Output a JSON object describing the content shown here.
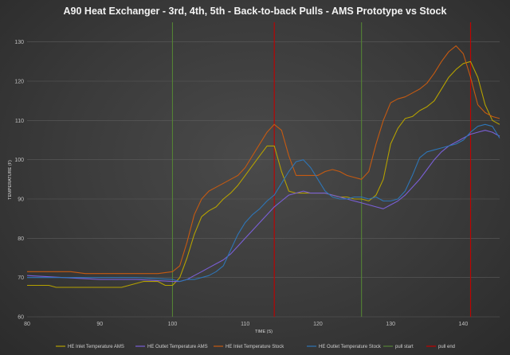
{
  "chart_data": {
    "type": "line",
    "title": "A90 Heat Exchanger - 3rd, 4th, 5th - Back-to-back Pulls - AMS Prototype vs Stock",
    "xlabel": "TIME (S)",
    "ylabel": "TEMPERATURE (F)",
    "xlim": [
      80,
      145
    ],
    "ylim": [
      60,
      135
    ],
    "xticks": [
      80,
      90,
      100,
      110,
      120,
      130,
      140
    ],
    "yticks": [
      60,
      70,
      80,
      90,
      100,
      110,
      120,
      130
    ],
    "grid": true,
    "legend_position": "bottom",
    "series": [
      {
        "name": "HE Inlet Temperature AMS",
        "color": "#b5a100",
        "x": [
          80,
          83,
          84,
          88,
          90,
          92,
          93,
          96,
          98,
          99,
          100,
          101,
          102,
          103,
          104,
          105,
          106,
          107,
          108,
          109,
          110,
          111,
          112,
          113,
          114,
          115,
          116,
          117,
          118,
          119,
          120,
          121,
          122,
          123,
          124,
          125,
          126,
          127,
          128,
          129,
          130,
          131,
          132,
          133,
          134,
          135,
          136,
          137,
          138,
          139,
          140,
          141,
          142,
          143,
          144,
          145
        ],
        "y": [
          68,
          68,
          67.5,
          67.5,
          67.5,
          67.5,
          67.5,
          69,
          69,
          68,
          68,
          70,
          75,
          81,
          85.5,
          87,
          88,
          90,
          91.5,
          93.5,
          96,
          98.5,
          101,
          103.5,
          103.5,
          97,
          92,
          91.5,
          91.5,
          91.5,
          91.5,
          91.5,
          91,
          90.5,
          90.5,
          90,
          90,
          89.5,
          91,
          95,
          104,
          108,
          110.5,
          111,
          112.5,
          113.5,
          115,
          118,
          121,
          123,
          124.5,
          125,
          121,
          114,
          110,
          109
        ]
      },
      {
        "name": "HE Outlet Temperature AMS",
        "color": "#7a5fd6",
        "x": [
          80,
          85,
          90,
          95,
          100,
          101,
          102,
          103,
          104,
          105,
          106,
          107,
          108,
          109,
          110,
          111,
          112,
          113,
          114,
          115,
          116,
          117,
          118,
          119,
          120,
          121,
          122,
          123,
          124,
          125,
          126,
          127,
          128,
          129,
          130,
          131,
          132,
          133,
          134,
          135,
          136,
          137,
          138,
          139,
          140,
          141,
          142,
          143,
          144,
          145
        ],
        "y": [
          70.5,
          70,
          69.5,
          69.5,
          69,
          69,
          69.5,
          70.5,
          71.5,
          72.5,
          73.5,
          74.5,
          76,
          78,
          80,
          82,
          84,
          86,
          88,
          89.5,
          91,
          91.5,
          92,
          91.5,
          91.5,
          91.5,
          91,
          90.5,
          90,
          89.5,
          89,
          88.5,
          88,
          87.5,
          88.5,
          89.5,
          91,
          93,
          95,
          97.5,
          100,
          102,
          103.5,
          104.5,
          105.5,
          106.5,
          107,
          107.5,
          107,
          106
        ]
      },
      {
        "name": "HE Inlet Temperature Stock",
        "color": "#c55a11",
        "x": [
          80,
          82,
          84,
          86,
          88,
          90,
          92,
          94,
          96,
          98,
          100,
          101,
          102,
          103,
          104,
          105,
          106,
          107,
          108,
          109,
          110,
          111,
          112,
          113,
          114,
          115,
          116,
          117,
          118,
          119,
          120,
          121,
          122,
          123,
          124,
          125,
          126,
          127,
          128,
          129,
          130,
          131,
          132,
          133,
          134,
          135,
          136,
          137,
          138,
          139,
          140,
          141,
          142,
          143,
          144,
          145
        ],
        "y": [
          71.5,
          71.5,
          71.5,
          71.5,
          71,
          71,
          71,
          71,
          71,
          71,
          71.5,
          73,
          79,
          86,
          90,
          92,
          93,
          94,
          95,
          96,
          98,
          101,
          104,
          107,
          109,
          107.5,
          101,
          96,
          96,
          96,
          96,
          97,
          97.5,
          97,
          96,
          95.5,
          95,
          97,
          104,
          110,
          114.5,
          115.5,
          116,
          117,
          118,
          119.5,
          122,
          125,
          127.5,
          129,
          127,
          121,
          114,
          112,
          111,
          110.5
        ]
      },
      {
        "name": "HE Outlet Temperature Stock",
        "color": "#2e75b6",
        "x": [
          80,
          85,
          90,
          95,
          100,
          101,
          102,
          103,
          104,
          105,
          106,
          107,
          108,
          109,
          110,
          111,
          112,
          113,
          114,
          115,
          116,
          117,
          118,
          119,
          120,
          121,
          122,
          123,
          124,
          125,
          126,
          127,
          128,
          129,
          130,
          131,
          132,
          133,
          134,
          135,
          136,
          137,
          138,
          139,
          140,
          141,
          142,
          143,
          144,
          145
        ],
        "y": [
          70,
          70,
          70,
          70,
          69.5,
          69,
          69.5,
          69.5,
          70,
          70.5,
          71.5,
          73,
          77,
          81,
          84,
          86,
          87.5,
          89.5,
          91,
          94,
          97,
          99.5,
          100,
          98,
          95,
          92,
          90.5,
          90,
          90,
          90.5,
          90.5,
          90,
          90.5,
          89.5,
          89.5,
          90,
          92,
          96,
          100.5,
          102,
          102.5,
          103,
          103.5,
          104,
          105,
          107,
          108.5,
          109,
          108.5,
          105.5
        ]
      },
      {
        "name": "pull start",
        "color": "#548235",
        "x": [
          100,
          126,
          141
        ],
        "type": "vline"
      },
      {
        "name": "pull end",
        "color": "#c00000",
        "x": [
          114,
          141
        ],
        "type": "vline"
      }
    ]
  }
}
